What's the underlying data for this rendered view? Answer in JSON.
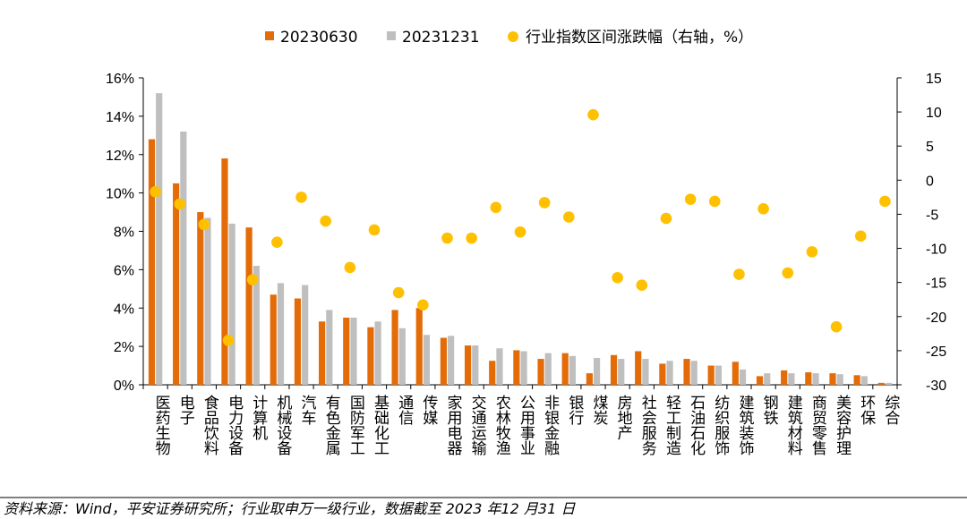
{
  "chart_data": {
    "type": "bar",
    "categories": [
      "医药生物",
      "电子",
      "食品饮料",
      "电力设备",
      "计算机",
      "机械设备",
      "汽车",
      "有色金属",
      "国防军工",
      "基础化工",
      "通信",
      "传媒",
      "家用电器",
      "交通运输",
      "农林牧渔",
      "公用事业",
      "非银金融",
      "银行",
      "煤炭",
      "房地产",
      "社会服务",
      "轻工制造",
      "石油石化",
      "纺织服饰",
      "建筑装饰",
      "钢铁",
      "建筑材料",
      "商贸零售",
      "美容护理",
      "环保",
      "综合"
    ],
    "series": [
      {
        "name": "20230630",
        "axis": "left",
        "kind": "bar",
        "color": "#E36C09",
        "values": [
          12.8,
          10.5,
          9.0,
          11.8,
          8.2,
          4.7,
          4.5,
          3.3,
          3.5,
          3.0,
          3.9,
          4.0,
          2.45,
          2.05,
          1.25,
          1.8,
          1.35,
          1.65,
          0.6,
          1.55,
          1.75,
          1.1,
          1.35,
          1.0,
          1.2,
          0.45,
          0.75,
          0.65,
          0.6,
          0.5,
          0.1
        ]
      },
      {
        "name": "20231231",
        "axis": "left",
        "kind": "bar",
        "color": "#BFBFBF",
        "values": [
          15.2,
          13.2,
          8.7,
          8.4,
          6.2,
          5.3,
          5.2,
          3.9,
          3.5,
          3.3,
          2.95,
          2.6,
          2.55,
          2.05,
          1.9,
          1.75,
          1.65,
          1.5,
          1.4,
          1.35,
          1.35,
          1.25,
          1.25,
          1.0,
          0.8,
          0.6,
          0.6,
          0.6,
          0.55,
          0.45,
          0.1
        ]
      },
      {
        "name": "行业指数区间涨跌幅（右轴，%）",
        "axis": "right",
        "kind": "scatter",
        "color": "#FFC000",
        "values": [
          -1.7,
          -3.5,
          -6.5,
          -23.5,
          -14.6,
          -9.1,
          -2.5,
          -6.0,
          -12.8,
          -7.3,
          -16.5,
          -18.3,
          -8.5,
          -8.5,
          -4.0,
          -7.6,
          -3.3,
          -5.4,
          9.6,
          -14.3,
          -15.4,
          -5.6,
          -2.8,
          -3.1,
          -13.8,
          -4.2,
          -13.6,
          -10.5,
          -21.5,
          -8.2,
          -3.1
        ]
      }
    ],
    "y_left": {
      "ylim": [
        0,
        16
      ],
      "ticks": [
        "0%",
        "2%",
        "4%",
        "6%",
        "8%",
        "10%",
        "12%",
        "14%",
        "16%"
      ]
    },
    "y_right": {
      "ylim": [
        -30,
        15
      ],
      "ticks": [
        "15",
        "10",
        "5",
        "0",
        "-5",
        "-10",
        "-15",
        "-20",
        "-25",
        "-30"
      ]
    },
    "legend_position": "top-center",
    "grid": false
  },
  "legend": {
    "items": [
      "20230630",
      "20231231",
      "行业指数区间涨跌幅（右轴，%）"
    ]
  },
  "source_note": "资料来源：Wind，平安证券研究所；行业取申万一级行业，数据截至 2023 年12 月31 日"
}
